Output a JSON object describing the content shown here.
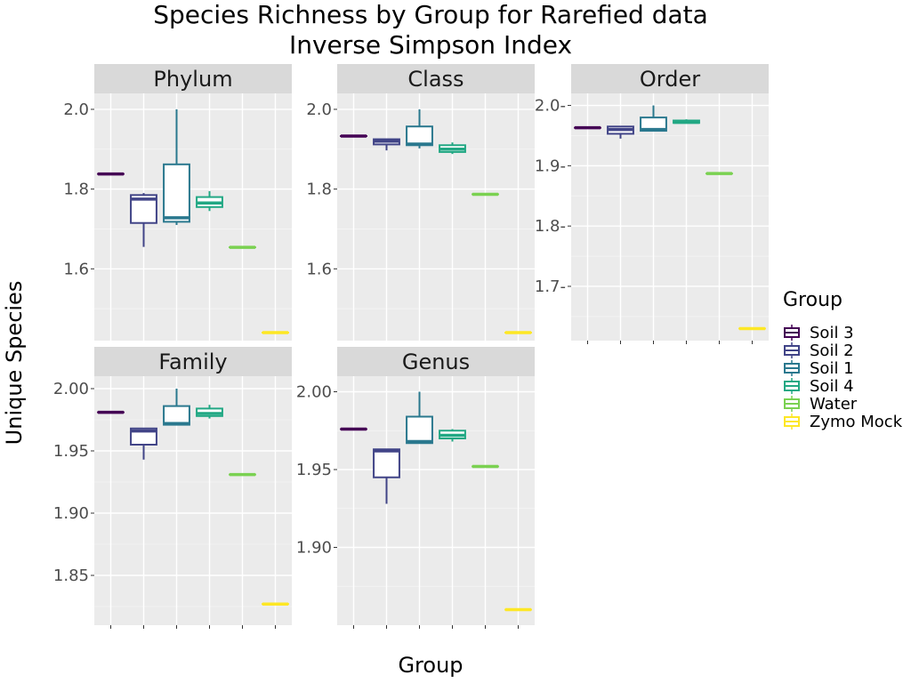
{
  "chart_data": {
    "type": "boxplot",
    "title": [
      "Species Richness by Group for Rarefied data",
      "Inverse Simpson Index"
    ],
    "xlabel": "Group",
    "ylabel": "Unique Species",
    "legend": {
      "title": "Group",
      "placement": "right",
      "entries": [
        {
          "name": "Soil 3",
          "color": "#440154"
        },
        {
          "name": "Soil 2",
          "color": "#414487"
        },
        {
          "name": "Soil 1",
          "color": "#2a788e"
        },
        {
          "name": "Soil 4",
          "color": "#22a884"
        },
        {
          "name": "Water",
          "color": "#7ad151"
        },
        {
          "name": "Zymo Mock",
          "color": "#fde725"
        }
      ]
    },
    "panels": [
      {
        "name": "Phylum",
        "ylim": [
          1.42,
          2.04
        ],
        "yticks": [
          1.6,
          1.8,
          2.0
        ],
        "ytick_labels": [
          "1.6",
          "1.8",
          "2.0"
        ],
        "boxes": [
          {
            "min": 1.838,
            "q1": 1.838,
            "median": 1.838,
            "q3": 1.838,
            "max": 1.838
          },
          {
            "min": 1.655,
            "q1": 1.715,
            "median": 1.775,
            "q3": 1.785,
            "max": 1.79
          },
          {
            "min": 1.71,
            "q1": 1.718,
            "median": 1.728,
            "q3": 1.862,
            "max": 2.0
          },
          {
            "min": 1.745,
            "q1": 1.755,
            "median": 1.765,
            "q3": 1.78,
            "max": 1.795
          },
          {
            "min": 1.654,
            "q1": 1.654,
            "median": 1.654,
            "q3": 1.654,
            "max": 1.654
          },
          {
            "min": 1.44,
            "q1": 1.44,
            "median": 1.44,
            "q3": 1.44,
            "max": 1.44
          }
        ]
      },
      {
        "name": "Class",
        "ylim": [
          1.42,
          2.04
        ],
        "yticks": [
          1.6,
          1.8,
          2.0
        ],
        "ytick_labels": [
          "1.6",
          "1.8",
          "2.0"
        ],
        "boxes": [
          {
            "min": 1.933,
            "q1": 1.933,
            "median": 1.933,
            "q3": 1.933,
            "max": 1.933
          },
          {
            "min": 1.897,
            "q1": 1.912,
            "median": 1.92,
            "q3": 1.925,
            "max": 1.925
          },
          {
            "min": 1.902,
            "q1": 1.91,
            "median": 1.913,
            "q3": 1.957,
            "max": 2.0
          },
          {
            "min": 1.888,
            "q1": 1.893,
            "median": 1.9,
            "q3": 1.91,
            "max": 1.917
          },
          {
            "min": 1.787,
            "q1": 1.787,
            "median": 1.787,
            "q3": 1.787,
            "max": 1.787
          },
          {
            "min": 1.44,
            "q1": 1.44,
            "median": 1.44,
            "q3": 1.44,
            "max": 1.44
          }
        ]
      },
      {
        "name": "Order",
        "ylim": [
          1.61,
          2.02
        ],
        "yticks": [
          1.7,
          1.8,
          1.9,
          2.0
        ],
        "ytick_labels": [
          "1.7-",
          "1.8-",
          "1.9-",
          "2.0-"
        ],
        "boxes": [
          {
            "min": 1.963,
            "q1": 1.963,
            "median": 1.963,
            "q3": 1.963,
            "max": 1.963
          },
          {
            "min": 1.945,
            "q1": 1.953,
            "median": 1.96,
            "q3": 1.965,
            "max": 1.965
          },
          {
            "min": 1.958,
            "q1": 1.958,
            "median": 1.96,
            "q3": 1.98,
            "max": 2.0
          },
          {
            "min": 1.97,
            "q1": 1.971,
            "median": 1.972,
            "q3": 1.975,
            "max": 1.977
          },
          {
            "min": 1.887,
            "q1": 1.887,
            "median": 1.887,
            "q3": 1.887,
            "max": 1.887
          },
          {
            "min": 1.63,
            "q1": 1.63,
            "median": 1.63,
            "q3": 1.63,
            "max": 1.63
          }
        ]
      },
      {
        "name": "Family",
        "ylim": [
          1.81,
          2.01
        ],
        "yticks": [
          1.85,
          1.9,
          1.95,
          2.0
        ],
        "ytick_labels": [
          "1.85",
          "1.90",
          "1.95",
          "2.00"
        ],
        "boxes": [
          {
            "min": 1.981,
            "q1": 1.981,
            "median": 1.981,
            "q3": 1.981,
            "max": 1.981
          },
          {
            "min": 1.943,
            "q1": 1.955,
            "median": 1.966,
            "q3": 1.968,
            "max": 1.968
          },
          {
            "min": 1.971,
            "q1": 1.971,
            "median": 1.972,
            "q3": 1.986,
            "max": 2.0
          },
          {
            "min": 1.976,
            "q1": 1.978,
            "median": 1.98,
            "q3": 1.984,
            "max": 1.987
          },
          {
            "min": 1.931,
            "q1": 1.931,
            "median": 1.931,
            "q3": 1.931,
            "max": 1.931
          },
          {
            "min": 1.827,
            "q1": 1.827,
            "median": 1.827,
            "q3": 1.827,
            "max": 1.827
          }
        ]
      },
      {
        "name": "Genus",
        "ylim": [
          1.85,
          2.01
        ],
        "yticks": [
          1.9,
          1.95,
          2.0
        ],
        "ytick_labels": [
          "1.90",
          "1.95",
          "2.00"
        ],
        "boxes": [
          {
            "min": 1.976,
            "q1": 1.976,
            "median": 1.976,
            "q3": 1.976,
            "max": 1.976
          },
          {
            "min": 1.928,
            "q1": 1.945,
            "median": 1.962,
            "q3": 1.963,
            "max": 1.963
          },
          {
            "min": 1.967,
            "q1": 1.967,
            "median": 1.968,
            "q3": 1.984,
            "max": 2.0
          },
          {
            "min": 1.968,
            "q1": 1.97,
            "median": 1.972,
            "q3": 1.975,
            "max": 1.976
          },
          {
            "min": 1.952,
            "q1": 1.952,
            "median": 1.952,
            "q3": 1.952,
            "max": 1.952
          },
          {
            "min": 1.86,
            "q1": 1.86,
            "median": 1.86,
            "q3": 1.86,
            "max": 1.86
          }
        ]
      }
    ]
  }
}
